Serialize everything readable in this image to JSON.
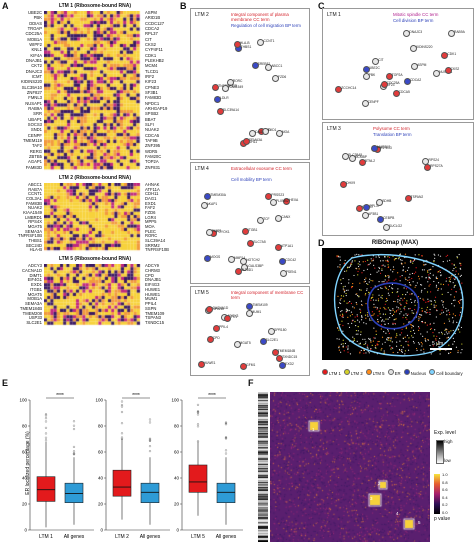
{
  "panels": {
    "A": "A",
    "B": "B",
    "C": "C",
    "D": "D",
    "E": "E",
    "F": "F"
  },
  "colors": {
    "heat_low": "#3b1a63",
    "heat_mid": "#c0297f",
    "heat_high": "#f7d23b",
    "ltm_box": "#e31a1c",
    "all_box": "#2e9bd6"
  },
  "panelA": {
    "ltm1": {
      "title": "LTM 1 (Ribosome-bound RNA)",
      "genes_left": [
        "UBE2C",
        "PBK",
        "DDIAS",
        "TROAP",
        "CDC25A",
        "MOB1A",
        "WIPF2",
        "KNL1",
        "KIF4A",
        "DNAJB1",
        "CKT2",
        "DNAJC3",
        "ICMT",
        "KIDINS220",
        "SLC39A10",
        "ZNF827",
        "FMNL3",
        "NUSAP1",
        "RAB9A",
        "SRR",
        "UBAP1",
        "SOCS3",
        "SND1",
        "CENPF",
        "TMEM119",
        "TAF2",
        "RERG",
        "ZBTB5",
        "AGAP1",
        "FAM83D"
      ],
      "genes_right": [
        "ASPM",
        "ARID1B",
        "CCDC127",
        "CDCA2",
        "RPL37",
        "CIT",
        "CKS2",
        "CYP4F11",
        "CDK1",
        "PLEKHB2",
        "MCM4",
        "TLCD1",
        "IRF2",
        "KIF23",
        "CPNE3",
        "SF3B1",
        "FAM83D",
        "NPDC1",
        "ARHGAP19",
        "SPSB2",
        "BBAT",
        "SLFI",
        "NUAK2",
        "CDCA5",
        "TAF9B",
        "ZNF395",
        "WDR5",
        "FAM20C",
        "TOP2A",
        "ZNF831"
      ]
    },
    "ltm2": {
      "title": "LTM 2 (Ribosome-bound RNA)",
      "genes_left": [
        "ABCC1",
        "RAB7A",
        "CCNT1",
        "COL3A1",
        "FAM83B",
        "NUAK2",
        "KIAA1549",
        "LMBRD1",
        "RPS4X",
        "MGAT5",
        "SEMA3A",
        "TNFRSF10B",
        "THBS1",
        "SEC24D",
        "HLA-B"
      ],
      "genes_right": [
        "AHNAK",
        "ATF11A",
        "CDH11",
        "DAG1",
        "EXD1",
        "FAF2",
        "FZD6",
        "LGR4",
        "MPP5",
        "MOA",
        "PLEC",
        "RORC",
        "SLC39A14",
        "SRRM2",
        "TNFRSF10B"
      ]
    },
    "ltm5": {
      "title": "LTM 5 (Ribosome-bound RNA)",
      "genes_left": [
        "ADCY3",
        "CACNA1D",
        "DIMT1",
        "EIF4G1",
        "EXD1",
        "ITGB1",
        "MGAT5",
        "MOB1A",
        "SEMA3A",
        "TMEM184B",
        "TMEM208",
        "USP33",
        "SLC2E1"
      ],
      "genes_right": [
        "ADCY9",
        "CHRM3",
        "CPD",
        "DNAJB1",
        "EIF4G3",
        "HUWE1",
        "HUWE1",
        "MUM1",
        "PPIL4",
        "SSPN",
        "TMEM109",
        "TSPAN3",
        "TXNDC15"
      ]
    }
  },
  "panelB": {
    "ltm2": {
      "name": "LTM 2",
      "cc": "Integral component of plasma membrane CC term",
      "bp": "Regulation of cell migration BP term",
      "nodes": [
        "SREBF1",
        "SCD",
        "LDLR",
        "THBS1",
        "ABCC1",
        "FZD6",
        "RORC",
        "MOA",
        "HLA-B",
        "CDH11",
        "EXD1",
        "TNFRSF10B",
        "SLC39A14",
        "DAG1",
        "KIAA1549",
        "SEMA3A",
        "CCNT1"
      ]
    },
    "ltm4": {
      "name": "LTM 4",
      "cc": "Extracellular exosome CC term",
      "bp": "Cell mobility BP term",
      "nodes": [
        "LGALS3BP",
        "PCYOX1",
        "CDC42",
        "PSEN1",
        "PRSS23",
        "NOTCH2",
        "HEXA",
        "PLXNB2",
        "GLT8D1",
        "TIMP3",
        "ITGB1",
        "ATP1A1",
        "AKAP1",
        "TMEM30A",
        "MMP14",
        "TCF",
        "SLC7A5",
        "CANX",
        "MOGS"
      ]
    },
    "ltm5": {
      "name": "LTM 5",
      "cc": "Integral component of membrane CC term",
      "nodes": [
        "MUM1",
        "MGAT5",
        "EXD2",
        "HUWE1",
        "TSPAN3",
        "ADCY3",
        "SLC2E1",
        "TMEM184B",
        "CACNA1D",
        "TTI1",
        "TXNDC15",
        "PPIL4",
        "GPR180",
        "GFM1",
        "TMEM109",
        "CPD"
      ]
    }
  },
  "panelC": {
    "ltm1": {
      "name": "LTM 1",
      "cc": "Mitotic spindle CC term",
      "bp": "Cell division BP term",
      "nodes": [
        "KIF23",
        "ASPM",
        "CIT",
        "CDCA2",
        "UBE2C",
        "NUSAP1",
        "TOP2A",
        "CDK1",
        "CKS2",
        "CDCA5",
        "CENPF",
        "ZCCHC14",
        "PBK",
        "CDC25A",
        "KIDINS220",
        "RAB9A",
        "DNAJC3"
      ]
    },
    "ltm3": {
      "name": "LTM 3",
      "cc": "Polysome CC term",
      "bp": "Translation BP term",
      "nodes": [
        "KMT2D",
        "EIF4G3",
        "AP3B1",
        "MCMBP",
        "SLC38A5",
        "RPL37",
        "RPS24",
        "CEBPB",
        "BTNL2",
        "RPS27A",
        "TSPAN2",
        "DHX9",
        "SDHB",
        "SUCLG2",
        "MAP3K2"
      ]
    }
  },
  "panelD": {
    "title": "RIBOmap (MAX)",
    "scale": "5 μm",
    "legend": [
      {
        "label": "LTM 1",
        "color": "#e31a1c"
      },
      {
        "label": "LTM 2",
        "color": "#d4d12a"
      },
      {
        "label": "LTM 5",
        "color": "#ff8c1a"
      },
      {
        "label": "ER",
        "color": "#e0e0e0"
      },
      {
        "label": "Nucleus",
        "color": "#2b3fb8"
      },
      {
        "label": "Cell boundary",
        "color": "#7fd3ff"
      }
    ]
  },
  "panelE": {
    "ylabel": "ER localized percentage (%)",
    "yticks": [
      "0",
      "20",
      "40",
      "60",
      "80",
      "100"
    ],
    "sig": "****",
    "chart_data": [
      {
        "type": "box",
        "categories": [
          "LTM 1",
          "All genes"
        ],
        "medians": [
          31,
          28
        ],
        "q1": [
          22,
          21
        ],
        "q3": [
          41,
          36
        ],
        "whisker_low": [
          2,
          4
        ],
        "whisker_high": [
          68,
          56
        ],
        "ylim": [
          0,
          100
        ]
      },
      {
        "type": "box",
        "categories": [
          "LTM 2",
          "All genes"
        ],
        "medians": [
          33,
          29
        ],
        "q1": [
          26,
          21
        ],
        "q3": [
          46,
          36
        ],
        "whisker_low": [
          8,
          4
        ],
        "whisker_high": [
          70,
          56
        ],
        "ylim": [
          0,
          100
        ]
      },
      {
        "type": "box",
        "categories": [
          "LTM 5",
          "All genes"
        ],
        "medians": [
          37,
          29
        ],
        "q1": [
          29,
          21
        ],
        "q3": [
          50,
          36
        ],
        "whisker_low": [
          11,
          4
        ],
        "whisker_high": [
          68,
          56
        ],
        "ylim": [
          0,
          100
        ]
      }
    ]
  },
  "panelF": {
    "legend_exp_title": "Exp. level",
    "legend_exp_high": "high",
    "legend_exp_low": "low",
    "legend_p_title": "p value",
    "legend_p_ticks": [
      "1.0",
      "0.8",
      "0.6",
      "0.4",
      "0.2",
      "0.0"
    ],
    "marks": [
      "1",
      "2",
      "3",
      "4",
      "5"
    ]
  }
}
